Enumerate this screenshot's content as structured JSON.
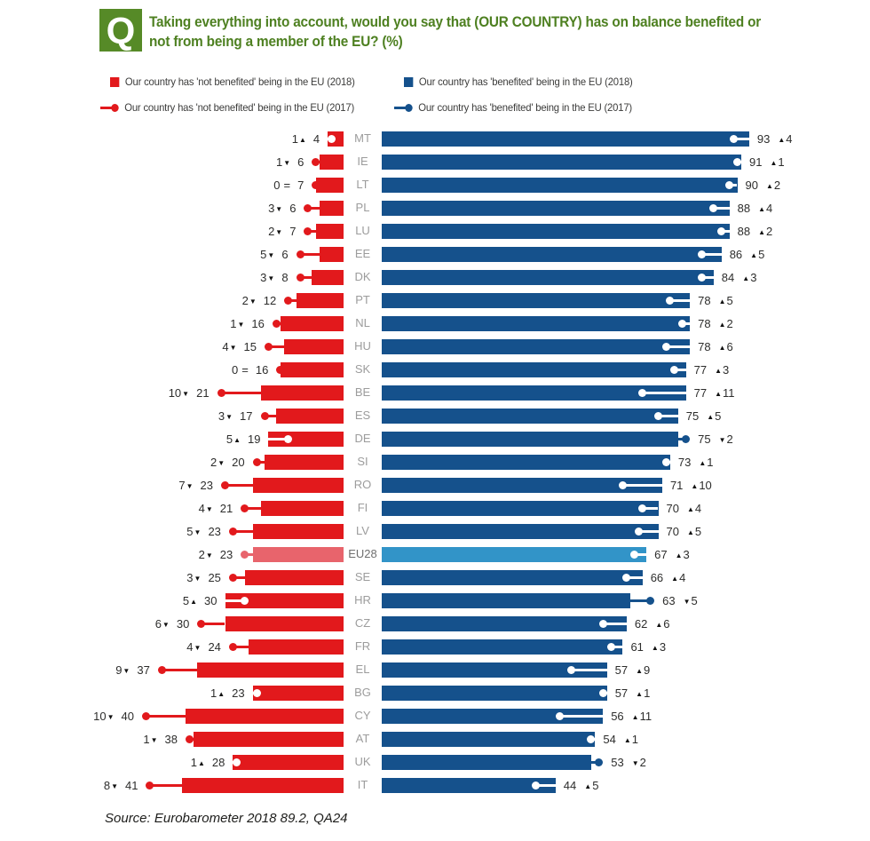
{
  "header": {
    "q_label": "Q",
    "title_line1": "Taking everything into account, would you say that (OUR COUNTRY) has on balance benefited or",
    "title_line2": "not from being a member of the EU? (%)"
  },
  "legend": {
    "items": [
      {
        "label": "Our country has 'not benefited' being in the EU (2018)",
        "marker": "square",
        "color": "#e2191c"
      },
      {
        "label": "Our country has 'benefited' being in the EU (2018)",
        "marker": "square",
        "color": "#15518c"
      },
      {
        "label": "Our country has 'not benefited' being in the EU (2017)",
        "marker": "line-dot",
        "color": "#e2191c"
      },
      {
        "label": "Our country has 'benefited' being in the EU (2017)",
        "marker": "line-dot",
        "color": "#15518c"
      }
    ]
  },
  "chart_data": {
    "type": "diverging_bar",
    "title": "Taking everything into account, would you say that (OUR COUNTRY) has on balance benefited or not from being a member of the EU? (%)",
    "unit": "%",
    "symbols": {
      "up": "▲",
      "down": "▼",
      "same": "="
    },
    "series": [
      {
        "name": "Our country has 'not benefited' being in the EU (2018)",
        "side": "left",
        "style": "bar"
      },
      {
        "name": "Our country has 'benefited' being in the EU (2018)",
        "side": "right",
        "style": "bar"
      },
      {
        "name": "Our country has 'not benefited' being in the EU (2017)",
        "side": "left",
        "style": "marker"
      },
      {
        "name": "Our country has 'benefited' being in the EU (2017)",
        "side": "right",
        "style": "marker"
      }
    ],
    "rows": [
      {
        "code": "MT",
        "nb": 4,
        "nb_chg": 1,
        "nb_dir": "up",
        "b": 93,
        "b_chg": 4,
        "b_dir": "up",
        "highlight": false
      },
      {
        "code": "IE",
        "nb": 6,
        "nb_chg": 1,
        "nb_dir": "down",
        "b": 91,
        "b_chg": 1,
        "b_dir": "up",
        "highlight": false
      },
      {
        "code": "LT",
        "nb": 7,
        "nb_chg": 0,
        "nb_dir": "same",
        "b": 90,
        "b_chg": 2,
        "b_dir": "up",
        "highlight": false
      },
      {
        "code": "PL",
        "nb": 6,
        "nb_chg": 3,
        "nb_dir": "down",
        "b": 88,
        "b_chg": 4,
        "b_dir": "up",
        "highlight": false
      },
      {
        "code": "LU",
        "nb": 7,
        "nb_chg": 2,
        "nb_dir": "down",
        "b": 88,
        "b_chg": 2,
        "b_dir": "up",
        "highlight": false
      },
      {
        "code": "EE",
        "nb": 6,
        "nb_chg": 5,
        "nb_dir": "down",
        "b": 86,
        "b_chg": 5,
        "b_dir": "up",
        "highlight": false
      },
      {
        "code": "DK",
        "nb": 8,
        "nb_chg": 3,
        "nb_dir": "down",
        "b": 84,
        "b_chg": 3,
        "b_dir": "up",
        "highlight": false
      },
      {
        "code": "PT",
        "nb": 12,
        "nb_chg": 2,
        "nb_dir": "down",
        "b": 78,
        "b_chg": 5,
        "b_dir": "up",
        "highlight": false
      },
      {
        "code": "NL",
        "nb": 16,
        "nb_chg": 1,
        "nb_dir": "down",
        "b": 78,
        "b_chg": 2,
        "b_dir": "up",
        "highlight": false
      },
      {
        "code": "HU",
        "nb": 15,
        "nb_chg": 4,
        "nb_dir": "down",
        "b": 78,
        "b_chg": 6,
        "b_dir": "up",
        "highlight": false
      },
      {
        "code": "SK",
        "nb": 16,
        "nb_chg": 0,
        "nb_dir": "same",
        "b": 77,
        "b_chg": 3,
        "b_dir": "up",
        "highlight": false
      },
      {
        "code": "BE",
        "nb": 21,
        "nb_chg": 10,
        "nb_dir": "down",
        "b": 77,
        "b_chg": 11,
        "b_dir": "up",
        "highlight": false
      },
      {
        "code": "ES",
        "nb": 17,
        "nb_chg": 3,
        "nb_dir": "down",
        "b": 75,
        "b_chg": 5,
        "b_dir": "up",
        "highlight": false
      },
      {
        "code": "DE",
        "nb": 19,
        "nb_chg": 5,
        "nb_dir": "up",
        "b": 75,
        "b_chg": 2,
        "b_dir": "down",
        "highlight": false
      },
      {
        "code": "SI",
        "nb": 20,
        "nb_chg": 2,
        "nb_dir": "down",
        "b": 73,
        "b_chg": 1,
        "b_dir": "up",
        "highlight": false
      },
      {
        "code": "RO",
        "nb": 23,
        "nb_chg": 7,
        "nb_dir": "down",
        "b": 71,
        "b_chg": 10,
        "b_dir": "up",
        "highlight": false
      },
      {
        "code": "FI",
        "nb": 21,
        "nb_chg": 4,
        "nb_dir": "down",
        "b": 70,
        "b_chg": 4,
        "b_dir": "up",
        "highlight": false
      },
      {
        "code": "LV",
        "nb": 23,
        "nb_chg": 5,
        "nb_dir": "down",
        "b": 70,
        "b_chg": 5,
        "b_dir": "up",
        "highlight": false
      },
      {
        "code": "EU28",
        "nb": 23,
        "nb_chg": 2,
        "nb_dir": "down",
        "b": 67,
        "b_chg": 3,
        "b_dir": "up",
        "highlight": true
      },
      {
        "code": "SE",
        "nb": 25,
        "nb_chg": 3,
        "nb_dir": "down",
        "b": 66,
        "b_chg": 4,
        "b_dir": "up",
        "highlight": false
      },
      {
        "code": "HR",
        "nb": 30,
        "nb_chg": 5,
        "nb_dir": "up",
        "b": 63,
        "b_chg": 5,
        "b_dir": "down",
        "highlight": false
      },
      {
        "code": "CZ",
        "nb": 30,
        "nb_chg": 6,
        "nb_dir": "down",
        "b": 62,
        "b_chg": 6,
        "b_dir": "up",
        "highlight": false
      },
      {
        "code": "FR",
        "nb": 24,
        "nb_chg": 4,
        "nb_dir": "down",
        "b": 61,
        "b_chg": 3,
        "b_dir": "up",
        "highlight": false
      },
      {
        "code": "EL",
        "nb": 37,
        "nb_chg": 9,
        "nb_dir": "down",
        "b": 57,
        "b_chg": 9,
        "b_dir": "up",
        "highlight": false
      },
      {
        "code": "BG",
        "nb": 23,
        "nb_chg": 1,
        "nb_dir": "up",
        "b": 57,
        "b_chg": 1,
        "b_dir": "up",
        "highlight": false
      },
      {
        "code": "CY",
        "nb": 40,
        "nb_chg": 10,
        "nb_dir": "down",
        "b": 56,
        "b_chg": 11,
        "b_dir": "up",
        "highlight": false
      },
      {
        "code": "AT",
        "nb": 38,
        "nb_chg": 1,
        "nb_dir": "down",
        "b": 54,
        "b_chg": 1,
        "b_dir": "up",
        "highlight": false
      },
      {
        "code": "UK",
        "nb": 28,
        "nb_chg": 1,
        "nb_dir": "up",
        "b": 53,
        "b_chg": 2,
        "b_dir": "down",
        "highlight": false
      },
      {
        "code": "IT",
        "nb": 41,
        "nb_chg": 8,
        "nb_dir": "down",
        "b": 44,
        "b_chg": 5,
        "b_dir": "up",
        "highlight": false
      }
    ]
  },
  "colors": {
    "red": "#e2191c",
    "light_red": "#e8646c",
    "blue": "#15518c",
    "light_blue": "#3294c8",
    "green": "#4e8021",
    "marker_inside": "#ffffff"
  },
  "source": "Source: Eurobarometer 2018 89.2, QA24"
}
